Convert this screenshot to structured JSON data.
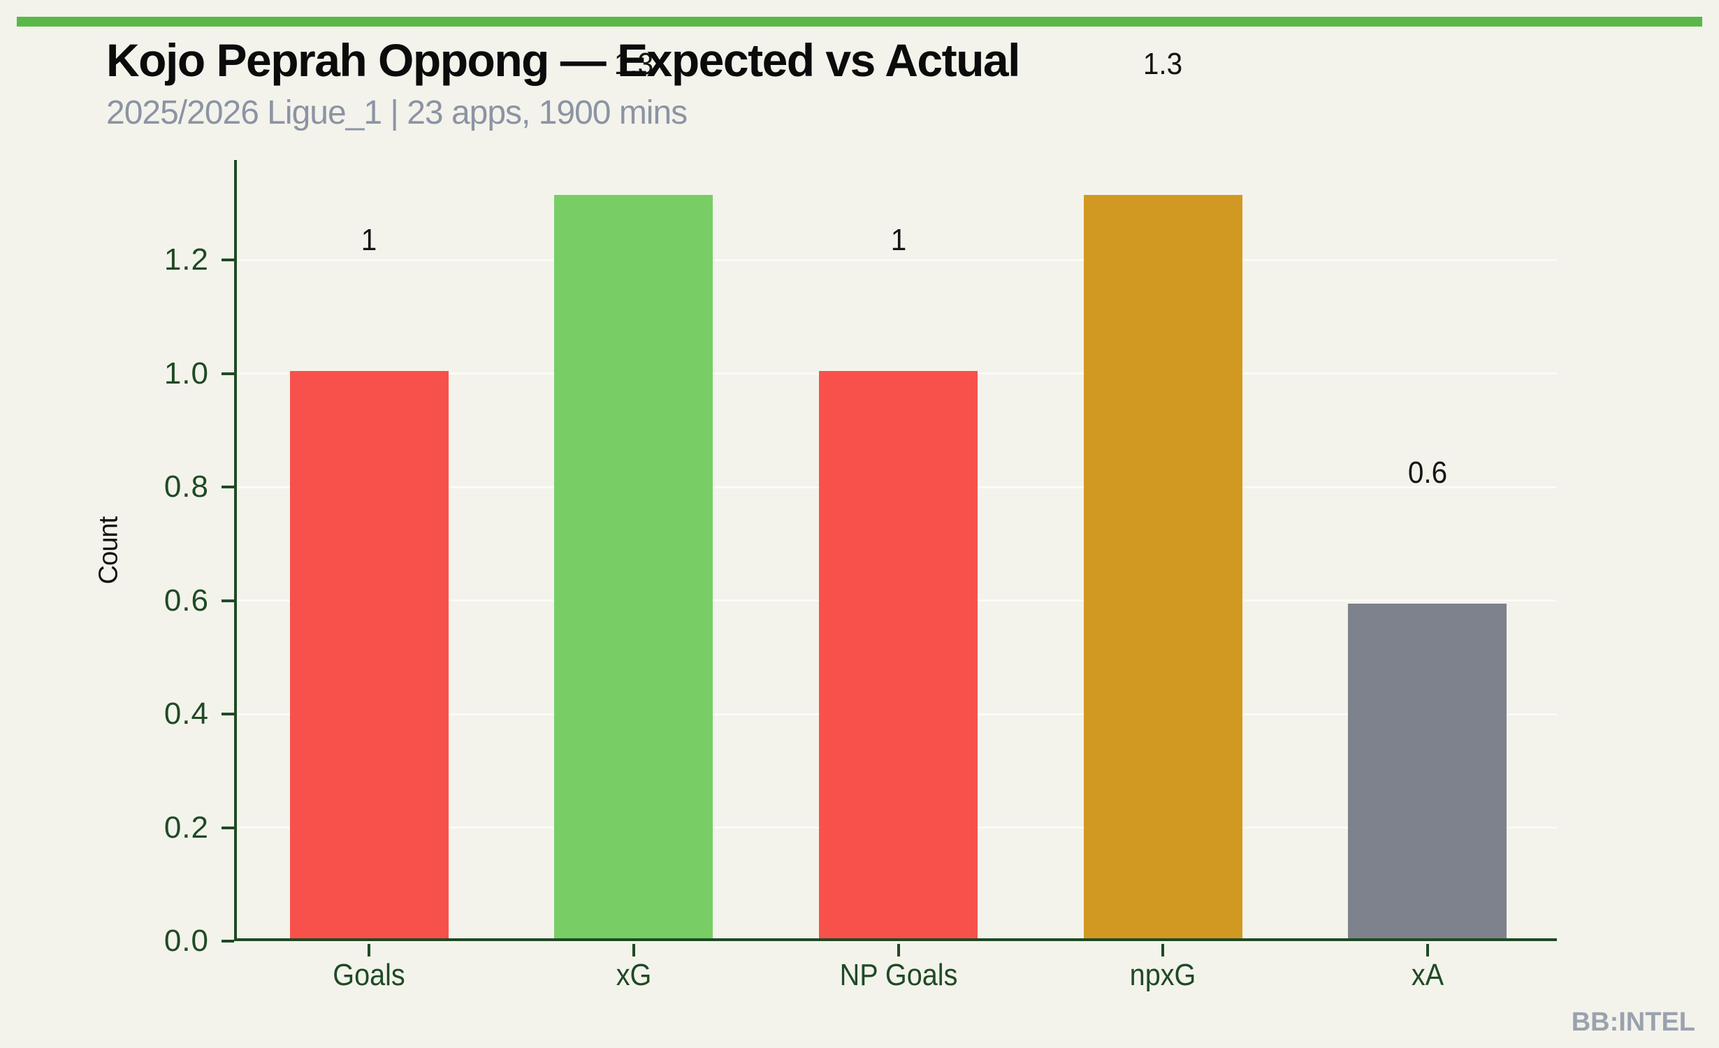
{
  "header": {
    "title": "Kojo Peprah Oppong — Expected vs Actual",
    "subtitle": "2025/2026 Ligue_1 | 23 apps, 1900 mins"
  },
  "footer": {
    "watermark": "BB:INTEL"
  },
  "theme": {
    "background": "#f3f3ec",
    "top_strip_green": "#5ab848",
    "axis_green": "#1f4a24",
    "subtitle_gray": "#8c94a3",
    "watermark_gray": "#9aa2ad",
    "gridline": "rgba(255,255,255,0.65)"
  },
  "chart_data": {
    "type": "bar",
    "title": "Kojo Peprah Oppong — Expected vs Actual",
    "subtitle": "2025/2026 Ligue_1 | 23 apps, 1900 mins",
    "categories": [
      "Goals",
      "xG",
      "NP Goals",
      "npxG",
      "xA"
    ],
    "values": [
      1.0,
      1.31,
      1.0,
      1.31,
      0.59
    ],
    "value_labels": [
      "1",
      "1.3",
      "1",
      "1.3",
      "0.6"
    ],
    "bar_colors": [
      "#f8514b",
      "#78ce65",
      "#f8514b",
      "#d29922",
      "#7e828d"
    ],
    "xlabel": "",
    "ylabel": "Count",
    "yticks": [
      0.0,
      0.2,
      0.4,
      0.6,
      0.8,
      1.0,
      1.2
    ],
    "ytick_labels": [
      "0.0",
      "0.2",
      "0.4",
      "0.6",
      "0.8",
      "1.0",
      "1.2"
    ],
    "ylim": [
      0,
      1.376
    ],
    "grid": "horizontal",
    "legend": "none"
  }
}
